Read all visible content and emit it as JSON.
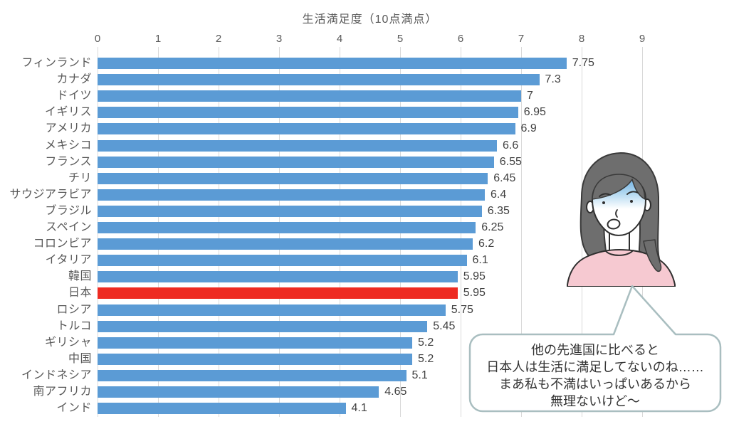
{
  "chart_data": {
    "type": "bar",
    "orientation": "horizontal",
    "title": "生活満足度（10点満点）",
    "categories": [
      "フィンランド",
      "カナダ",
      "ドイツ",
      "イギリス",
      "アメリカ",
      "メキシコ",
      "フランス",
      "チリ",
      "サウジアラビア",
      "ブラジル",
      "スペイン",
      "コロンビア",
      "イタリア",
      "韓国",
      "日本",
      "ロシア",
      "トルコ",
      "ギリシャ",
      "中国",
      "インドネシア",
      "南アフリカ",
      "インド"
    ],
    "values": [
      7.75,
      7.3,
      7,
      6.95,
      6.9,
      6.6,
      6.55,
      6.45,
      6.4,
      6.35,
      6.25,
      6.2,
      6.1,
      5.95,
      5.95,
      5.75,
      5.45,
      5.2,
      5.2,
      5.1,
      4.65,
      4.1
    ],
    "value_labels": [
      "7.75",
      "7.3",
      "7",
      "6.95",
      "6.9",
      "6.6",
      "6.55",
      "6.45",
      "6.4",
      "6.35",
      "6.25",
      "6.2",
      "6.1",
      "5.95",
      "5.95",
      "5.75",
      "5.45",
      "5.2",
      "5.2",
      "5.1",
      "4.65",
      "4.1"
    ],
    "axis_ticks": [
      "0",
      "1",
      "2",
      "3",
      "4",
      "5",
      "6",
      "7",
      "8",
      "9"
    ],
    "xlim": [
      0,
      9
    ],
    "gridlines": "vertical",
    "bar_color": "#5b9bd5",
    "highlight_category": "日本",
    "highlight_index": 14,
    "highlight_color": "#ee2b22"
  },
  "speech_bubble": {
    "lines": [
      "他の先進国に比べると",
      "日本人は生活に満足してないのね……",
      "まあ私も不満はいっぱいあるから",
      "無理ないけど〜"
    ]
  }
}
